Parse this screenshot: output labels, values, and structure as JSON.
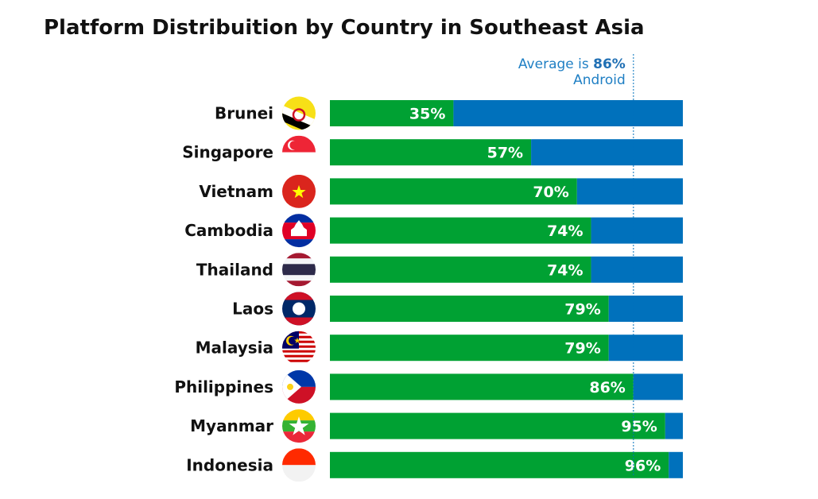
{
  "colors": {
    "android": "#00a133",
    "ios": "#0071bc",
    "average_line": "#0071bc",
    "text": "#111111"
  },
  "average": {
    "prefix": "Average is ",
    "value_text": "86%",
    "suffix": "Android"
  },
  "chart_data": {
    "type": "bar",
    "orientation": "horizontal",
    "stacked": true,
    "title": "Platform Distribuition by Country in Southeast Asia",
    "categories": [
      "Brunei",
      "Singapore",
      "Vietnam",
      "Cambodia",
      "Thailand",
      "Laos",
      "Malaysia",
      "Philippines",
      "Myanmar",
      "Indonesia"
    ],
    "series": [
      {
        "values": [
          35,
          57,
          70,
          74,
          74,
          79,
          79,
          86,
          95,
          96
        ]
      },
      {
        "values": [
          65,
          43,
          30,
          26,
          26,
          21,
          21,
          14,
          5,
          4
        ]
      }
    ],
    "data_labels": [
      "35%",
      "57%",
      "70%",
      "74%",
      "74%",
      "79%",
      "79%",
      "86%",
      "95%",
      "96%"
    ],
    "average_value": 86,
    "xlim": [
      0,
      100
    ],
    "grid": false,
    "legend": "none",
    "flag_icons": [
      "brunei-flag-icon",
      "singapore-flag-icon",
      "vietnam-flag-icon",
      "cambodia-flag-icon",
      "thailand-flag-icon",
      "laos-flag-icon",
      "malaysia-flag-icon",
      "philippines-flag-icon",
      "myanmar-flag-icon",
      "indonesia-flag-icon"
    ]
  }
}
